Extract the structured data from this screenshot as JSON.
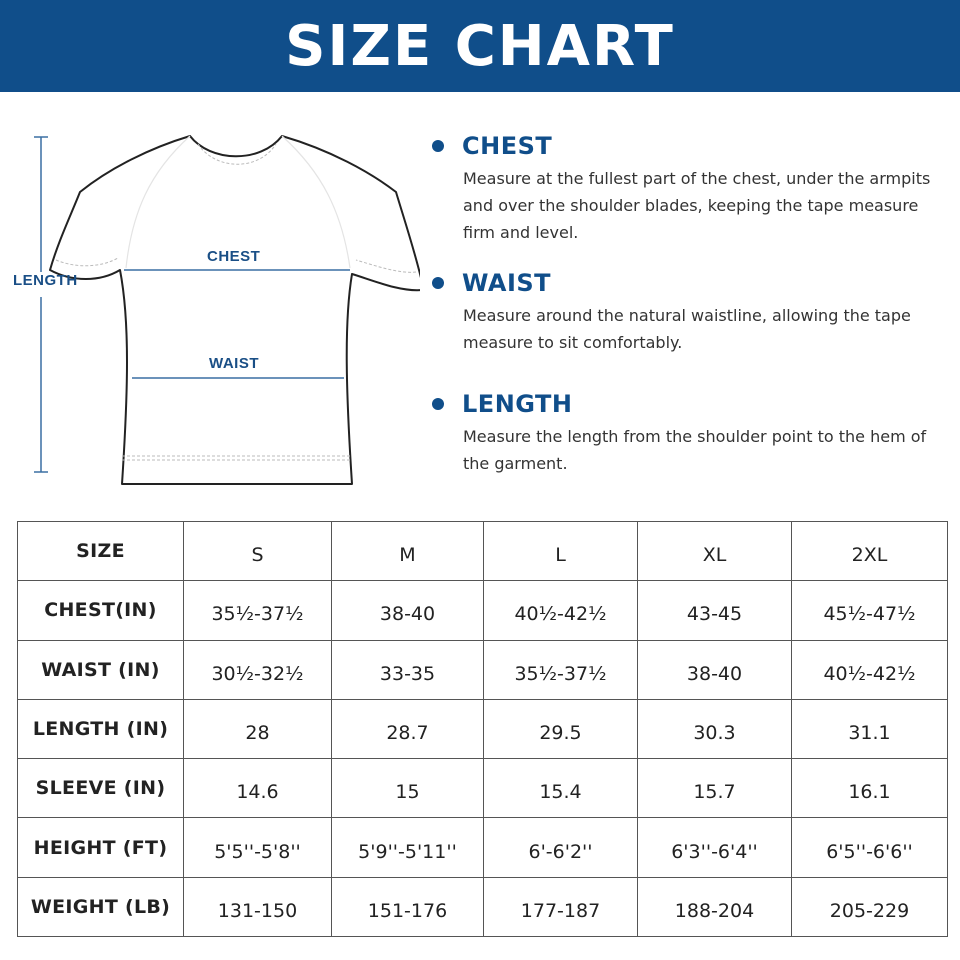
{
  "header": {
    "title": "SIZE CHART"
  },
  "diagram": {
    "labels": {
      "length": "LENGTH",
      "chest": "CHEST",
      "waist": "WAIST"
    },
    "accent_color": "#1a4f86"
  },
  "descriptions": [
    {
      "title": "CHEST",
      "body": "Measure at the fullest part of the chest, under the armpits and over the shoulder blades, keeping the tape measure firm and level."
    },
    {
      "title": "WAIST",
      "body": "Measure around the natural waistline, allowing the tape measure to sit comfortably."
    },
    {
      "title": "LENGTH",
      "body": "Measure the length from the shoulder point to the hem of the garment."
    }
  ],
  "table": {
    "header_label": "SIZE",
    "sizes": [
      "S",
      "M",
      "L",
      "XL",
      "2XL"
    ],
    "rows": [
      {
        "label": "CHEST(IN)",
        "values": [
          "35½-37½",
          "38-40",
          "40½-42½",
          "43-45",
          "45½-47½"
        ]
      },
      {
        "label": "WAIST (IN)",
        "values": [
          "30½-32½",
          "33-35",
          "35½-37½",
          "38-40",
          "40½-42½"
        ]
      },
      {
        "label": "LENGTH (IN)",
        "values": [
          "28",
          "28.7",
          "29.5",
          "30.3",
          "31.1"
        ]
      },
      {
        "label": "SLEEVE (IN)",
        "values": [
          "14.6",
          "15",
          "15.4",
          "15.7",
          "16.1"
        ]
      },
      {
        "label": "HEIGHT (FT)",
        "values": [
          "5'5''-5'8''",
          "5'9''-5'11''",
          "6'-6'2''",
          "6'3''-6'4''",
          "6'5''-6'6''"
        ]
      },
      {
        "label": "WEIGHT (LB)",
        "values": [
          "131-150",
          "151-176",
          "177-187",
          "188-204",
          "205-229"
        ]
      }
    ]
  },
  "colors": {
    "banner": "#104e8a",
    "accent": "#104e8a"
  }
}
